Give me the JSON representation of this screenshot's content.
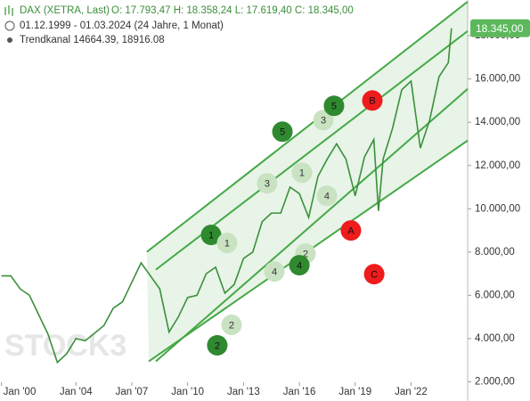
{
  "chart_data": {
    "type": "line",
    "title": "DAX (XETRA, Last)",
    "ohlc": "O: 17.793,47  H: 18.358,24  L: 17.619,40  C: 18.345,00",
    "period": "01.12.1999 - 01.03.2024  (24 Jahre, 1 Monat)",
    "indicator": "Trendkanal 14664.39, 18916.08",
    "watermark": "STOCK3",
    "x": [
      2000.0,
      2000.5,
      2001.0,
      2001.5,
      2002.0,
      2002.5,
      2003.0,
      2003.5,
      2004.0,
      2004.5,
      2005.0,
      2005.5,
      2006.0,
      2006.5,
      2007.0,
      2007.5,
      2008.0,
      2008.5,
      2009.0,
      2009.5,
      2010.0,
      2010.5,
      2011.0,
      2011.5,
      2012.0,
      2012.5,
      2013.0,
      2013.5,
      2014.0,
      2014.5,
      2015.0,
      2015.5,
      2016.0,
      2016.5,
      2017.0,
      2017.5,
      2018.0,
      2018.5,
      2019.0,
      2019.5,
      2020.0,
      2020.25,
      2020.5,
      2021.0,
      2021.5,
      2022.0,
      2022.5,
      2023.0,
      2023.5,
      2024.0,
      2024.17
    ],
    "series": [
      {
        "name": "DAX (XETRA, Last)",
        "color": "#3b8f3b",
        "values": [
          6900,
          6900,
          6300,
          6000,
          5100,
          4200,
          2900,
          3300,
          4000,
          3900,
          4250,
          4600,
          5400,
          5700,
          6600,
          7500,
          6900,
          6300,
          4300,
          5000,
          5900,
          6000,
          7000,
          7300,
          6100,
          6500,
          7700,
          8000,
          9400,
          9800,
          9800,
          11000,
          10700,
          9600,
          11500,
          12300,
          13000,
          12300,
          10600,
          12400,
          13200,
          9900,
          12300,
          13700,
          15500,
          15900,
          12800,
          14100,
          16100,
          16750,
          18345
        ]
      }
    ],
    "last_price": {
      "value": 18345,
      "label": "18.345,00"
    },
    "channel_lines": [
      {
        "x": [
          2007.81,
          2025.04
        ],
        "y": [
          8008,
          19572
        ]
      },
      {
        "x": [
          2008.29,
          2025.04
        ],
        "y": [
          7185,
          18214
        ]
      },
      {
        "x": [
          2008.29,
          2025.04
        ],
        "y": [
          2947,
          15539
        ]
      },
      {
        "x": [
          2007.91,
          2025.04
        ],
        "y": [
          2947,
          13152
        ]
      }
    ],
    "channel_color": "#45a845",
    "annotations": [
      {
        "text": "5",
        "x": 2015.09,
        "y": 13564,
        "color": "#2f8a2f"
      },
      {
        "text": "3",
        "x": 2014.27,
        "y": 11177,
        "color": "#c9e2c2"
      },
      {
        "text": "1",
        "x": 2016.14,
        "y": 11671,
        "color": "#c9e2c2"
      },
      {
        "text": "4",
        "x": 2017.48,
        "y": 10601,
        "color": "#c9e2c2"
      },
      {
        "text": "1",
        "x": 2011.26,
        "y": 8790,
        "color": "#2f8a2f"
      },
      {
        "text": "1",
        "x": 2012.12,
        "y": 8420,
        "color": "#c9e2c2"
      },
      {
        "text": "2",
        "x": 2011.59,
        "y": 3687,
        "color": "#2f8a2f"
      },
      {
        "text": "2",
        "x": 2012.36,
        "y": 4634,
        "color": "#c9e2c2"
      },
      {
        "text": "4",
        "x": 2014.66,
        "y": 7103,
        "color": "#c9e2c2"
      },
      {
        "text": "2",
        "x": 2016.33,
        "y": 7926,
        "color": "#c9e2c2"
      },
      {
        "text": "4",
        "x": 2016.0,
        "y": 7391,
        "color": "#2f8a2f"
      },
      {
        "text": "3",
        "x": 2017.29,
        "y": 14099,
        "color": "#c9e2c2"
      },
      {
        "text": "5",
        "x": 2017.86,
        "y": 14757,
        "color": "#2f8a2f"
      },
      {
        "text": "B",
        "x": 2019.92,
        "y": 15004,
        "color": "#ee1c1c"
      },
      {
        "text": "A",
        "x": 2018.77,
        "y": 8996,
        "color": "#ee1c1c"
      },
      {
        "text": "C",
        "x": 2020.02,
        "y": 6979,
        "color": "#ee1c1c"
      }
    ],
    "xlim": [
      1999.92,
      2025.04
    ],
    "xticks": [
      {
        "value": 2000,
        "label": "Jan '00"
      },
      {
        "value": 2004,
        "label": "Jan '04"
      },
      {
        "value": 2007,
        "label": "Jan '07"
      },
      {
        "value": 2010,
        "label": "Jan '10"
      },
      {
        "value": 2013,
        "label": "Jan '13"
      },
      {
        "value": 2016,
        "label": "Jan '16"
      },
      {
        "value": 2019,
        "label": "Jan '19"
      },
      {
        "value": 2022,
        "label": "Jan '22"
      }
    ],
    "ylim": [
      1650,
      19650
    ],
    "yticks": [
      {
        "value": 2000,
        "label": "2.000,00"
      },
      {
        "value": 4000,
        "label": "4.000,00"
      },
      {
        "value": 6000,
        "label": "6.000,00"
      },
      {
        "value": 8000,
        "label": "8.000,00"
      },
      {
        "value": 10000,
        "label": "10.000,00"
      },
      {
        "value": 12000,
        "label": "12.000,00"
      },
      {
        "value": 14000,
        "label": "14.000,00"
      },
      {
        "value": 16000,
        "label": "16.000,00"
      },
      {
        "value": 18000,
        "label": "18.000,00"
      }
    ]
  }
}
